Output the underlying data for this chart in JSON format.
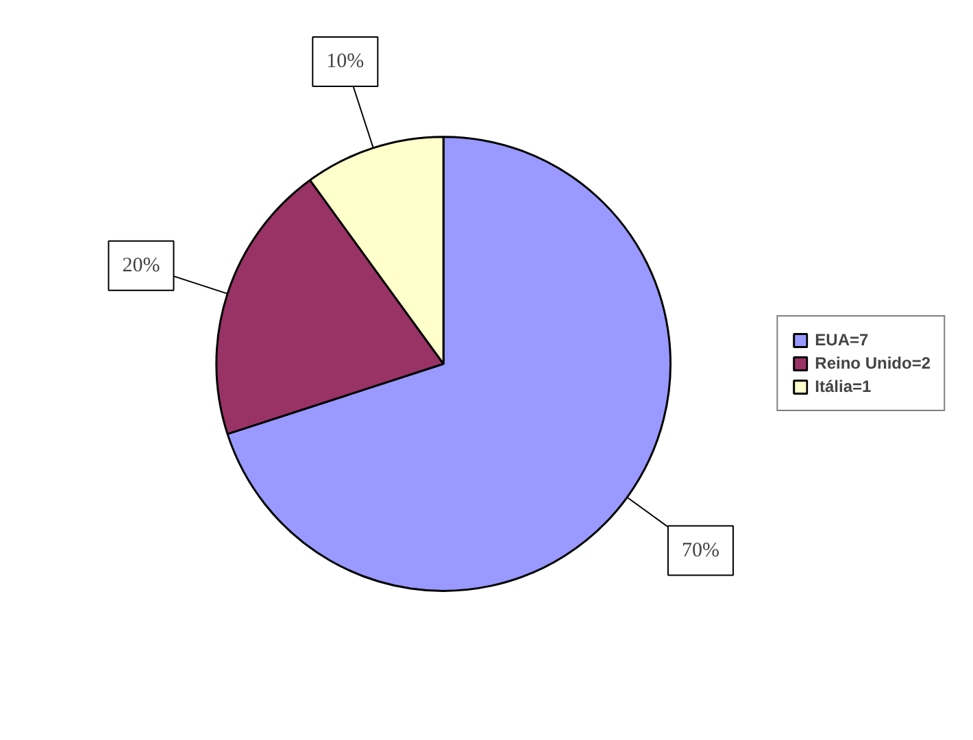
{
  "chart_data": {
    "type": "pie",
    "categories": [
      "EUA=7",
      "Reino Unido=2",
      "Itália=1"
    ],
    "values": [
      70,
      20,
      10
    ],
    "colors": [
      "#9999ff",
      "#993366",
      "#ffffcc"
    ],
    "value_labels": [
      "70%",
      "20%",
      "10%"
    ],
    "legend": "right"
  }
}
